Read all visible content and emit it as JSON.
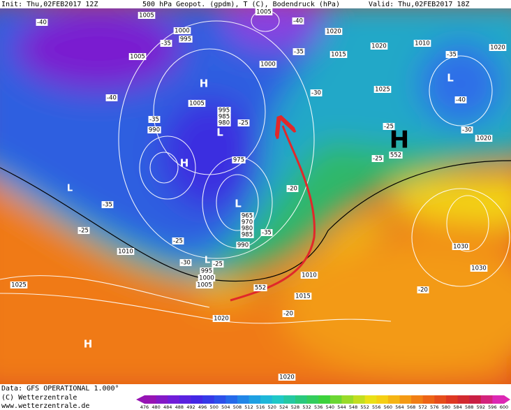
{
  "header": {
    "init": "Init: Thu,02FEB2017 12Z",
    "field": "500 hPa Geopot. (gpdm), T (C), Bodendruck (hPa)",
    "valid": "Valid: Thu,02FEB2017 18Z"
  },
  "footer": {
    "data": "Data: GFS OPERATIONAL 1.000°",
    "copyright": "(C) Wetterzentrale",
    "url": "www.wetterzentrale.de"
  },
  "colorbar": {
    "ticks": [
      476,
      480,
      484,
      488,
      492,
      496,
      500,
      504,
      508,
      512,
      516,
      520,
      524,
      528,
      532,
      536,
      540,
      544,
      548,
      552,
      556,
      560,
      564,
      568,
      572,
      576,
      580,
      584,
      588,
      592,
      596,
      600
    ]
  },
  "map": {
    "isobar_labels": [
      "1005",
      "1005",
      "1020",
      "1020",
      "1010",
      "1020",
      "1000",
      "995",
      "1005",
      "1015",
      "1000",
      "1025",
      "1005",
      "995",
      "985",
      "980",
      "990",
      "1020",
      "975",
      "965",
      "970",
      "980",
      "985",
      "990",
      "1010",
      "1030",
      "1030",
      "995",
      "1000",
      "1005",
      "1010",
      "1015",
      "1020",
      "1025",
      "1020",
      "552",
      "552"
    ],
    "temperature_labels": [
      "-40",
      "-35",
      "-40",
      "-35",
      "-40",
      "-35",
      "-25",
      "-30",
      "-35",
      "-40",
      "-30",
      "-25",
      "-25",
      "-35",
      "-20",
      "-25",
      "-25",
      "-35",
      "-30",
      "-25",
      "-20",
      "-20"
    ],
    "pressure_centers": [
      "H",
      "L",
      "H",
      "L",
      "L",
      "L",
      "H",
      "L",
      "H"
    ]
  }
}
